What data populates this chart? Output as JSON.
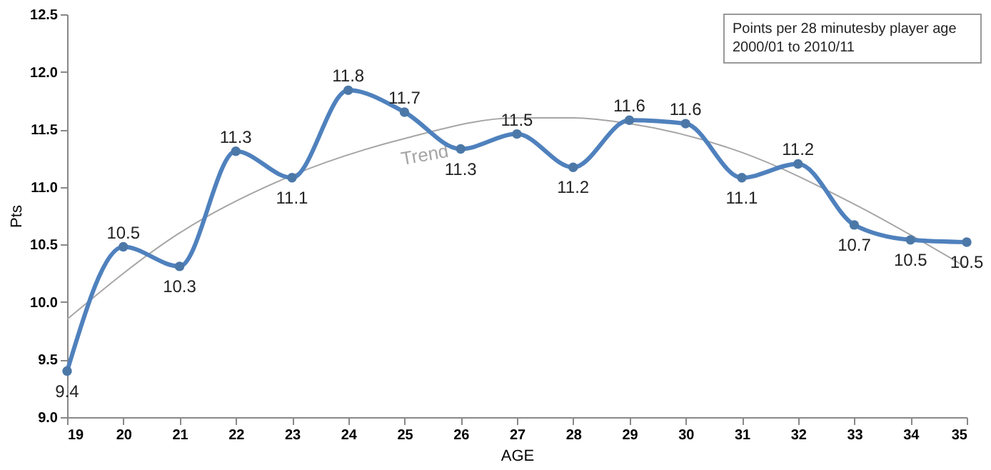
{
  "chart_data": {
    "type": "line",
    "xlabel": "AGE",
    "ylabel": "Pts",
    "annotations": [
      "Points per 28 minutesby player age",
      "2000/01 to 2010/11"
    ],
    "x": [
      19,
      20,
      21,
      22,
      23,
      24,
      25,
      26,
      27,
      28,
      29,
      30,
      31,
      32,
      33,
      34,
      35
    ],
    "series": [
      {
        "name": "Trend",
        "type": "line",
        "color": "#a6a6a6",
        "x": [
          19,
          21,
          23,
          25,
          27,
          28,
          29,
          31,
          33,
          35
        ],
        "values": [
          9.85,
          10.6,
          11.1,
          11.42,
          11.6,
          11.6,
          11.55,
          11.3,
          10.85,
          10.3
        ]
      },
      {
        "color": "#4f81bd",
        "marker": "circle",
        "values": [
          9.4,
          10.48,
          10.31,
          11.31,
          11.08,
          11.84,
          11.65,
          11.33,
          11.46,
          11.17,
          11.58,
          11.55,
          11.08,
          11.2,
          10.67,
          10.54,
          10.52
        ],
        "value_labels": [
          "9.4",
          "10.5",
          "10.3",
          "11.3",
          "11.1",
          "11.8",
          "11.7",
          "11.3",
          "11.5",
          "11.2",
          "11.6",
          "11.6",
          "11.1",
          "11.2",
          "10.7",
          "10.5",
          "10.5"
        ]
      }
    ],
    "xlim": [
      19,
      35
    ],
    "xticks": [
      19,
      20,
      21,
      22,
      23,
      24,
      25,
      26,
      27,
      28,
      29,
      30,
      31,
      32,
      33,
      34,
      35
    ],
    "ylim": [
      9,
      12.5
    ],
    "yticks": [
      {
        "value": 9,
        "label": "9.0"
      },
      9.5,
      {
        "value": 10,
        "label": "10.0"
      },
      10.5,
      {
        "value": 11,
        "label": "11.0"
      },
      11.5,
      {
        "value": 12,
        "label": "12.0"
      },
      12.5
    ]
  }
}
